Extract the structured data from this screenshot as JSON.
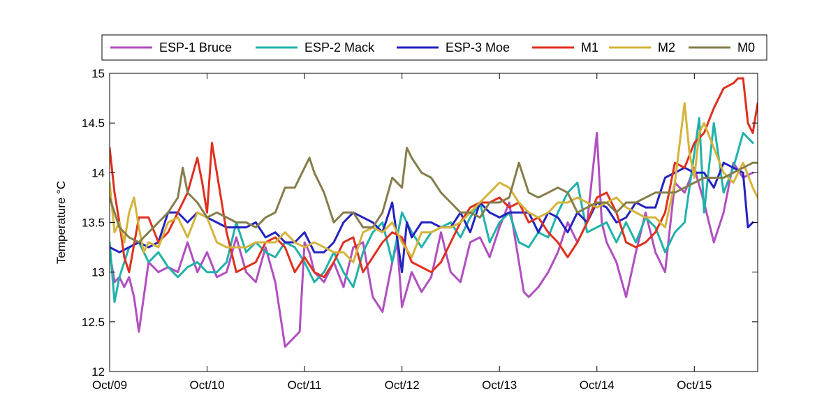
{
  "chart_data": {
    "type": "line",
    "title": "",
    "xlabel": "",
    "ylabel": "Temperature °C",
    "xlim": [
      0,
      6.65
    ],
    "ylim": [
      12,
      15
    ],
    "x_ticks": [
      {
        "x": 0,
        "label": "Oct/09"
      },
      {
        "x": 1,
        "label": "Oct/10"
      },
      {
        "x": 2,
        "label": "Oct/11"
      },
      {
        "x": 3,
        "label": "Oct/12"
      },
      {
        "x": 4,
        "label": "Oct/13"
      },
      {
        "x": 5,
        "label": "Oct/14"
      },
      {
        "x": 6,
        "label": "Oct/15"
      }
    ],
    "y_ticks": [
      {
        "y": 12,
        "label": "12"
      },
      {
        "y": 12.5,
        "label": "12.5"
      },
      {
        "y": 13,
        "label": "13"
      },
      {
        "y": 13.5,
        "label": "13.5"
      },
      {
        "y": 14,
        "label": "14"
      },
      {
        "y": 14.5,
        "label": "14.5"
      },
      {
        "y": 15,
        "label": "15"
      }
    ],
    "grid": false,
    "legend_position": "top",
    "series": [
      {
        "name": "ESP-1 Bruce",
        "color": "#b04fbf",
        "x": [
          0.0,
          0.05,
          0.1,
          0.15,
          0.2,
          0.25,
          0.3,
          0.4,
          0.5,
          0.6,
          0.7,
          0.8,
          0.9,
          1.0,
          1.1,
          1.2,
          1.3,
          1.4,
          1.5,
          1.6,
          1.7,
          1.8,
          1.85,
          1.9,
          1.95,
          2.0,
          2.05,
          2.1,
          2.2,
          2.3,
          2.4,
          2.5,
          2.6,
          2.7,
          2.8,
          2.9,
          2.95,
          3.0,
          3.1,
          3.2,
          3.3,
          3.4,
          3.5,
          3.6,
          3.7,
          3.8,
          3.9,
          4.0,
          4.1,
          4.2,
          4.25,
          4.3,
          4.4,
          4.5,
          4.6,
          4.7,
          4.8,
          4.9,
          5.0,
          5.05,
          5.1,
          5.2,
          5.3,
          5.4,
          5.5,
          5.6,
          5.7,
          5.8,
          5.9,
          6.0,
          6.1,
          6.2,
          6.3,
          6.4,
          6.5,
          6.6
        ],
        "y": [
          13.2,
          12.9,
          12.95,
          12.85,
          12.95,
          12.75,
          12.4,
          13.1,
          13.0,
          13.05,
          13.0,
          13.3,
          13.0,
          13.2,
          12.95,
          13.0,
          13.35,
          13.0,
          12.9,
          13.25,
          12.9,
          12.25,
          12.3,
          12.35,
          12.4,
          13.3,
          13.2,
          13.0,
          12.9,
          13.1,
          12.85,
          13.25,
          13.3,
          12.75,
          12.6,
          13.1,
          13.3,
          12.65,
          13.0,
          12.8,
          12.95,
          13.4,
          13.0,
          12.9,
          13.3,
          13.35,
          13.15,
          13.45,
          13.7,
          13.1,
          12.8,
          12.75,
          12.85,
          13.0,
          13.2,
          13.5,
          13.3,
          13.5,
          14.4,
          13.5,
          13.3,
          13.1,
          12.75,
          13.2,
          13.6,
          13.2,
          13.0,
          13.9,
          13.8,
          14.05,
          13.7,
          13.3,
          13.6,
          14.1,
          13.95,
          14.0
        ]
      },
      {
        "name": "ESP-2 Mack",
        "color": "#20b2aa",
        "x": [
          0.0,
          0.05,
          0.1,
          0.2,
          0.3,
          0.4,
          0.5,
          0.6,
          0.7,
          0.8,
          0.9,
          1.0,
          1.1,
          1.2,
          1.3,
          1.4,
          1.5,
          1.6,
          1.7,
          1.8,
          1.9,
          2.0,
          2.1,
          2.2,
          2.3,
          2.4,
          2.5,
          2.6,
          2.7,
          2.8,
          2.9,
          3.0,
          3.1,
          3.2,
          3.3,
          3.4,
          3.5,
          3.6,
          3.7,
          3.8,
          3.9,
          4.0,
          4.1,
          4.2,
          4.3,
          4.4,
          4.5,
          4.6,
          4.7,
          4.8,
          4.9,
          5.0,
          5.1,
          5.2,
          5.3,
          5.4,
          5.5,
          5.6,
          5.7,
          5.8,
          5.9,
          6.0,
          6.05,
          6.1,
          6.2,
          6.3,
          6.4,
          6.5,
          6.6
        ],
        "y": [
          13.3,
          12.7,
          12.95,
          13.25,
          13.3,
          13.1,
          13.2,
          13.05,
          12.95,
          13.05,
          13.1,
          13.0,
          13.0,
          13.1,
          13.5,
          13.2,
          13.3,
          13.2,
          13.15,
          13.3,
          13.25,
          13.1,
          12.9,
          13.0,
          13.2,
          13.0,
          12.85,
          13.2,
          13.4,
          13.5,
          13.1,
          13.6,
          13.4,
          13.25,
          13.4,
          13.45,
          13.5,
          13.35,
          13.55,
          13.7,
          13.3,
          13.5,
          13.6,
          13.3,
          13.25,
          13.4,
          13.35,
          13.6,
          13.8,
          13.9,
          13.4,
          13.45,
          13.5,
          13.3,
          13.5,
          13.3,
          13.55,
          13.45,
          13.2,
          13.4,
          13.5,
          14.2,
          14.55,
          13.6,
          14.5,
          13.8,
          14.05,
          14.4,
          14.3
        ]
      },
      {
        "name": "ESP-3 Moe",
        "color": "#2323c0",
        "x": [
          0.0,
          0.1,
          0.2,
          0.3,
          0.4,
          0.5,
          0.6,
          0.7,
          0.8,
          0.9,
          1.0,
          1.1,
          1.2,
          1.3,
          1.4,
          1.5,
          1.6,
          1.7,
          1.8,
          1.9,
          2.0,
          2.1,
          2.2,
          2.3,
          2.4,
          2.5,
          2.6,
          2.7,
          2.8,
          2.9,
          3.0,
          3.05,
          3.1,
          3.2,
          3.3,
          3.4,
          3.5,
          3.6,
          3.7,
          3.8,
          3.9,
          4.0,
          4.1,
          4.2,
          4.3,
          4.4,
          4.5,
          4.6,
          4.7,
          4.8,
          4.9,
          5.0,
          5.1,
          5.2,
          5.3,
          5.4,
          5.5,
          5.6,
          5.7,
          5.8,
          5.9,
          6.0,
          6.1,
          6.2,
          6.3,
          6.4,
          6.5,
          6.55,
          6.6
        ],
        "y": [
          13.25,
          13.2,
          13.25,
          13.3,
          13.25,
          13.3,
          13.6,
          13.6,
          13.5,
          13.6,
          13.55,
          13.5,
          13.45,
          13.45,
          13.45,
          13.5,
          13.35,
          13.4,
          13.3,
          13.3,
          13.4,
          13.2,
          13.2,
          13.3,
          13.5,
          13.6,
          13.55,
          13.5,
          13.4,
          13.7,
          13.0,
          13.5,
          13.35,
          13.5,
          13.5,
          13.45,
          13.45,
          13.6,
          13.4,
          13.7,
          13.6,
          13.55,
          13.6,
          13.6,
          13.6,
          13.4,
          13.6,
          13.55,
          13.4,
          13.6,
          13.5,
          13.7,
          13.65,
          13.5,
          13.55,
          13.7,
          13.65,
          13.65,
          13.95,
          14.0,
          14.05,
          14.0,
          14.0,
          13.85,
          14.1,
          14.05,
          14.0,
          13.45,
          13.5
        ]
      },
      {
        "name": "M1",
        "color": "#e0301e",
        "x": [
          0.0,
          0.05,
          0.1,
          0.15,
          0.2,
          0.3,
          0.4,
          0.5,
          0.6,
          0.7,
          0.8,
          0.9,
          0.95,
          1.0,
          1.05,
          1.1,
          1.2,
          1.3,
          1.4,
          1.5,
          1.6,
          1.7,
          1.8,
          1.9,
          2.0,
          2.1,
          2.2,
          2.3,
          2.4,
          2.5,
          2.6,
          2.7,
          2.8,
          2.9,
          3.0,
          3.1,
          3.2,
          3.3,
          3.4,
          3.5,
          3.6,
          3.7,
          3.8,
          3.9,
          4.0,
          4.1,
          4.2,
          4.3,
          4.4,
          4.5,
          4.6,
          4.7,
          4.8,
          4.9,
          5.0,
          5.1,
          5.2,
          5.3,
          5.4,
          5.5,
          5.6,
          5.7,
          5.8,
          5.9,
          6.0,
          6.1,
          6.2,
          6.3,
          6.4,
          6.45,
          6.5,
          6.55,
          6.6,
          6.65
        ],
        "y": [
          14.25,
          13.8,
          13.5,
          13.15,
          13.0,
          13.55,
          13.55,
          13.3,
          13.4,
          13.6,
          13.8,
          14.15,
          13.9,
          13.6,
          14.3,
          14.0,
          13.4,
          13.0,
          13.05,
          13.1,
          13.3,
          13.35,
          13.25,
          13.0,
          13.15,
          13.0,
          12.95,
          13.1,
          13.3,
          13.35,
          13.0,
          13.15,
          13.3,
          13.4,
          13.35,
          13.1,
          13.05,
          13.0,
          13.1,
          13.3,
          13.5,
          13.65,
          13.7,
          13.7,
          13.75,
          13.65,
          13.7,
          13.5,
          13.55,
          13.4,
          13.3,
          13.15,
          13.3,
          13.5,
          13.75,
          13.8,
          13.6,
          13.3,
          13.25,
          13.3,
          13.4,
          13.6,
          14.1,
          14.05,
          14.3,
          14.4,
          14.65,
          14.85,
          14.9,
          14.95,
          14.95,
          14.5,
          14.4,
          14.7
        ]
      },
      {
        "name": "M2",
        "color": "#d4b43a",
        "x": [
          0.0,
          0.05,
          0.1,
          0.15,
          0.2,
          0.25,
          0.3,
          0.35,
          0.4,
          0.5,
          0.6,
          0.7,
          0.8,
          0.9,
          1.0,
          1.1,
          1.2,
          1.3,
          1.4,
          1.5,
          1.6,
          1.7,
          1.8,
          1.9,
          2.0,
          2.1,
          2.2,
          2.3,
          2.4,
          2.5,
          2.6,
          2.7,
          2.8,
          2.9,
          3.0,
          3.1,
          3.2,
          3.3,
          3.4,
          3.5,
          3.6,
          3.7,
          3.8,
          3.9,
          4.0,
          4.1,
          4.2,
          4.3,
          4.4,
          4.5,
          4.6,
          4.7,
          4.8,
          4.9,
          5.0,
          5.1,
          5.2,
          5.3,
          5.4,
          5.5,
          5.6,
          5.7,
          5.8,
          5.85,
          5.9,
          5.95,
          6.0,
          6.05,
          6.1,
          6.2,
          6.3,
          6.4,
          6.5,
          6.6,
          6.65
        ],
        "y": [
          13.9,
          13.4,
          13.5,
          13.3,
          13.6,
          13.75,
          13.45,
          13.2,
          13.3,
          13.25,
          13.5,
          13.55,
          13.35,
          13.6,
          13.55,
          13.3,
          13.25,
          13.25,
          13.25,
          13.3,
          13.3,
          13.3,
          13.4,
          13.3,
          13.25,
          13.3,
          13.25,
          13.2,
          13.2,
          13.1,
          13.4,
          13.45,
          13.4,
          13.5,
          13.3,
          13.15,
          13.4,
          13.4,
          13.45,
          13.45,
          13.5,
          13.6,
          13.7,
          13.8,
          13.9,
          13.85,
          13.7,
          13.6,
          13.55,
          13.6,
          13.7,
          13.7,
          13.75,
          13.7,
          13.65,
          13.7,
          13.75,
          13.65,
          13.6,
          13.55,
          13.55,
          13.45,
          13.9,
          14.3,
          14.7,
          14.2,
          13.95,
          14.4,
          14.5,
          14.25,
          14.0,
          13.9,
          14.1,
          13.85,
          13.75
        ]
      },
      {
        "name": "M0",
        "color": "#857d4a",
        "x": [
          0.0,
          0.1,
          0.2,
          0.3,
          0.4,
          0.5,
          0.6,
          0.7,
          0.75,
          0.8,
          0.9,
          1.0,
          1.1,
          1.2,
          1.3,
          1.4,
          1.5,
          1.6,
          1.7,
          1.8,
          1.9,
          2.0,
          2.05,
          2.1,
          2.2,
          2.3,
          2.4,
          2.5,
          2.6,
          2.7,
          2.8,
          2.9,
          3.0,
          3.05,
          3.1,
          3.2,
          3.3,
          3.4,
          3.5,
          3.6,
          3.7,
          3.8,
          3.9,
          4.0,
          4.1,
          4.2,
          4.3,
          4.4,
          4.5,
          4.6,
          4.7,
          4.8,
          4.9,
          5.0,
          5.1,
          5.2,
          5.3,
          5.4,
          5.5,
          5.6,
          5.7,
          5.8,
          5.9,
          6.0,
          6.1,
          6.2,
          6.3,
          6.4,
          6.5,
          6.6,
          6.65
        ],
        "y": [
          13.75,
          13.45,
          13.35,
          13.3,
          13.4,
          13.5,
          13.6,
          13.75,
          14.05,
          13.8,
          13.7,
          13.55,
          13.6,
          13.55,
          13.5,
          13.5,
          13.45,
          13.55,
          13.6,
          13.85,
          13.85,
          14.05,
          14.15,
          14.0,
          13.8,
          13.5,
          13.6,
          13.6,
          13.45,
          13.45,
          13.6,
          13.95,
          13.85,
          14.25,
          14.15,
          14.0,
          13.95,
          13.8,
          13.7,
          13.6,
          13.6,
          13.55,
          13.7,
          13.7,
          13.75,
          14.1,
          13.8,
          13.75,
          13.8,
          13.85,
          13.8,
          13.6,
          13.65,
          13.7,
          13.7,
          13.6,
          13.7,
          13.7,
          13.75,
          13.8,
          13.8,
          13.8,
          13.85,
          13.9,
          13.95,
          13.95,
          13.95,
          14.0,
          14.05,
          14.1,
          14.1
        ]
      }
    ]
  }
}
